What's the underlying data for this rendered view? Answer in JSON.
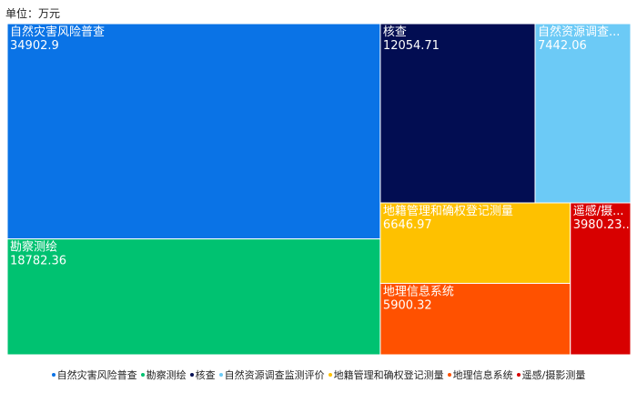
{
  "unit_label": "单位：万元",
  "chart_data": {
    "type": "treemap",
    "unit": "万元",
    "items": [
      {
        "name": "自然灾害风险普查",
        "display_name": "自然灾害风险普查",
        "value": 34902.9,
        "value_label": "34902.9",
        "color": "#0a73e6"
      },
      {
        "name": "勘察测绘",
        "display_name": "勘察测绘",
        "value": 18782.36,
        "value_label": "18782.36",
        "color": "#00c271"
      },
      {
        "name": "核查",
        "display_name": "核查",
        "value": 12054.71,
        "value_label": "12054.71",
        "color": "#020d52"
      },
      {
        "name": "自然资源调查监测评价",
        "display_name": "自然资源调查...",
        "value": 7442.06,
        "value_label": "7442.06",
        "color": "#6ccaf6"
      },
      {
        "name": "地籍管理和确权登记测量",
        "display_name": "地籍管理和确权登记测量",
        "value": 6646.97,
        "value_label": "6646.97",
        "color": "#fec100"
      },
      {
        "name": "地理信息系统",
        "display_name": "地理信息系统",
        "value": 5900.32,
        "value_label": "5900.32",
        "color": "#ff5100"
      },
      {
        "name": "遥感/摄影测量",
        "display_name": "遥感/摄...",
        "value": 3980.23,
        "value_label": "3980.23...",
        "color": "#d80000"
      }
    ],
    "legend_position": "bottom-center"
  }
}
